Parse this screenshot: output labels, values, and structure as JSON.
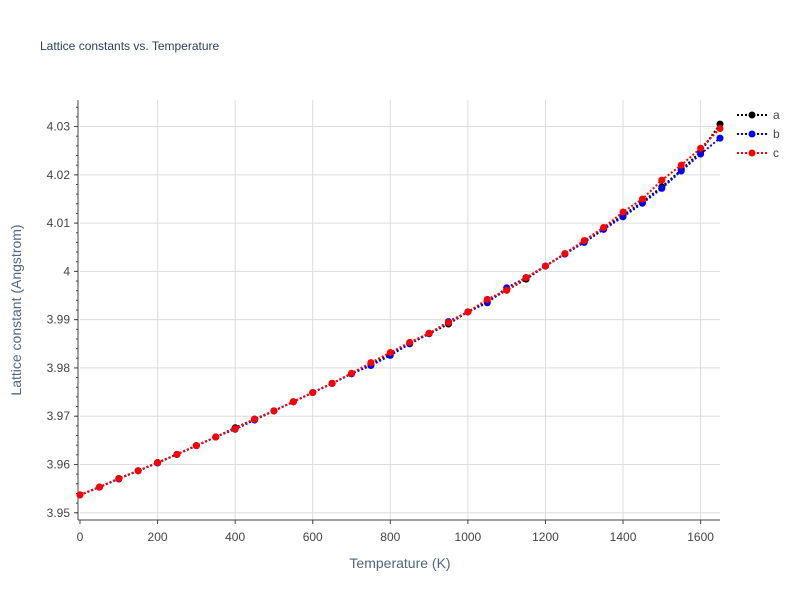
{
  "chart_data": {
    "type": "line",
    "title": "Lattice constants vs. Temperature",
    "xlabel": "Temperature (K)",
    "ylabel": "Lattice constant (Angstrom)",
    "xlim": [
      0,
      1650
    ],
    "ylim": [
      3.9485,
      4.0355
    ],
    "x_ticks": [
      0,
      200,
      400,
      600,
      800,
      1000,
      1200,
      1400,
      1600
    ],
    "y_ticks": [
      3.95,
      3.96,
      3.97,
      3.98,
      3.99,
      4.0,
      4.01,
      4.02,
      4.03
    ],
    "y_tick_labels": [
      "3.95",
      "3.96",
      "3.97",
      "3.98",
      "3.99",
      "4",
      "4.01",
      "4.02",
      "4.03"
    ],
    "grid": true,
    "legend_position": "top-right",
    "x": [
      0,
      50,
      100,
      150,
      200,
      250,
      300,
      350,
      400,
      450,
      500,
      550,
      600,
      650,
      700,
      750,
      800,
      850,
      900,
      950,
      1000,
      1050,
      1100,
      1150,
      1200,
      1250,
      1300,
      1350,
      1400,
      1450,
      1500,
      1550,
      1600,
      1650
    ],
    "series": [
      {
        "name": "a",
        "color": "#000000",
        "values": [
          3.9537,
          3.9553,
          3.9571,
          3.9587,
          3.9604,
          3.9621,
          3.9639,
          3.9657,
          3.9676,
          3.9694,
          3.9711,
          3.973,
          3.9749,
          3.9768,
          3.9788,
          3.9807,
          3.9829,
          3.985,
          3.9871,
          3.9891,
          3.9916,
          3.9938,
          3.9961,
          3.9984,
          4.0011,
          4.0036,
          4.0062,
          4.0089,
          4.0116,
          4.0144,
          4.0175,
          4.021,
          4.0248,
          4.0305
        ]
      },
      {
        "name": "b",
        "color": "#0000ee",
        "values": [
          3.9537,
          3.9553,
          3.957,
          3.9587,
          3.9603,
          3.9621,
          3.9639,
          3.9657,
          3.9673,
          3.9692,
          3.9711,
          3.973,
          3.9749,
          3.9768,
          3.9788,
          3.9805,
          3.9826,
          3.985,
          3.9871,
          3.9896,
          3.9916,
          3.9935,
          3.9966,
          3.9987,
          4.0011,
          4.0036,
          4.006,
          4.0087,
          4.0113,
          4.0141,
          4.0172,
          4.0208,
          4.0243,
          4.0276
        ]
      },
      {
        "name": "c",
        "color": "#ff0000",
        "values": [
          3.9537,
          3.9553,
          3.9571,
          3.9587,
          3.9604,
          3.9621,
          3.9639,
          3.9657,
          3.9674,
          3.9694,
          3.9711,
          3.973,
          3.9749,
          3.9768,
          3.9789,
          3.9811,
          3.9832,
          3.9853,
          3.9872,
          3.9894,
          3.9916,
          3.9942,
          3.9961,
          3.9987,
          4.0011,
          4.0037,
          4.0064,
          4.0091,
          4.0123,
          4.015,
          4.0189,
          4.022,
          4.0255,
          4.0296
        ]
      }
    ]
  }
}
